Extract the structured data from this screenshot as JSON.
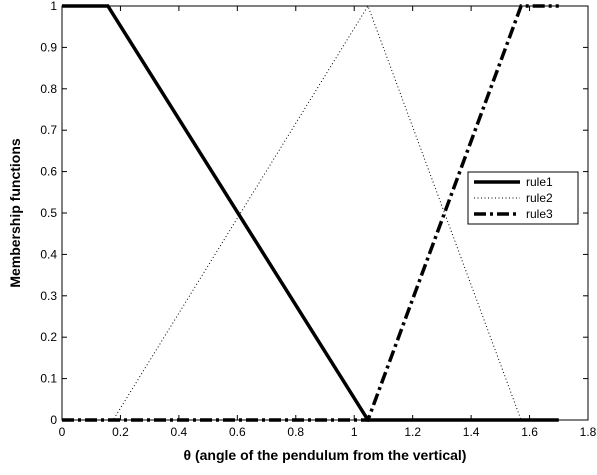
{
  "chart_data": {
    "type": "line",
    "xlabel": "θ (angle of the pendulum from the vertical)",
    "ylabel": "Membership functions",
    "xlim": [
      0,
      1.8
    ],
    "xticks": [
      0,
      0.2,
      0.4,
      0.6,
      0.8,
      1,
      1.2,
      1.4,
      1.6,
      1.8
    ],
    "ylim": [
      0,
      1
    ],
    "yticks": [
      0,
      0.1,
      0.2,
      0.3,
      0.4,
      0.5,
      0.6,
      0.7,
      0.8,
      0.9,
      1
    ],
    "legend": "center right",
    "series": [
      {
        "name": "rule1",
        "color": "#000000",
        "linestyle": "solid",
        "x": [
          0,
          0.157,
          1.047,
          1.7
        ],
        "values": [
          1,
          1,
          0,
          0
        ]
      },
      {
        "name": "rule2",
        "color": "#000000",
        "linestyle": "dotted",
        "x": [
          0,
          0.175,
          1.047,
          1.571,
          1.7
        ],
        "values": [
          0,
          0,
          1,
          0,
          0
        ]
      },
      {
        "name": "rule3",
        "color": "#000000",
        "linestyle": "dashdot",
        "x": [
          0,
          1.047,
          1.571,
          1.7
        ],
        "values": [
          0,
          0,
          1,
          1
        ]
      }
    ]
  }
}
